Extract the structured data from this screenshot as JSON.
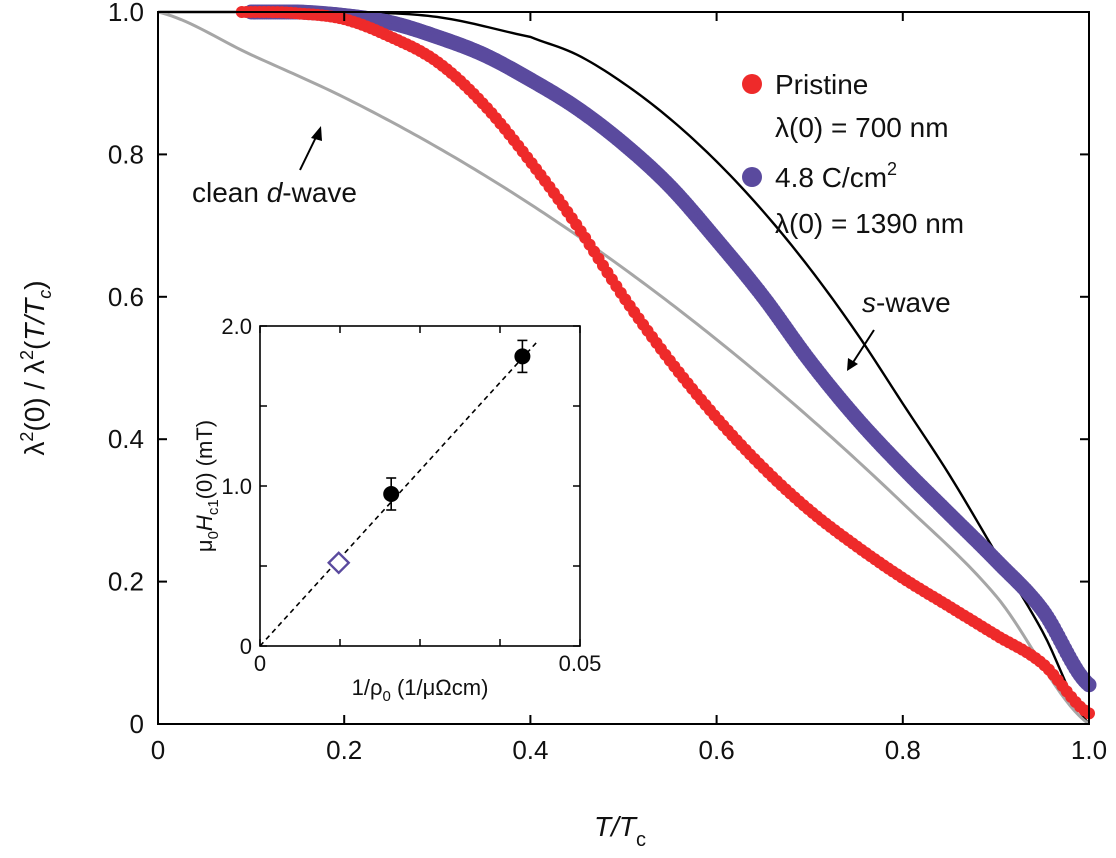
{
  "chart_data": [
    {
      "type": "scatter",
      "xlabel": "T/Tc",
      "xlabel_parts": {
        "main_italic": "T/T",
        "sub": "c"
      },
      "ylabel": "λ²(0) / λ²(T/Tc)",
      "ylabel_parts": {
        "pre": "λ",
        "sup1": "2",
        "mid": "(0) / λ",
        "sup2": "2",
        "open": "(",
        "italic_main": "T/T",
        "italic_sub": "c",
        "close": ")"
      },
      "xlim": [
        0,
        1.0
      ],
      "ylim": [
        0,
        1.0
      ],
      "xticks": [
        0,
        0.2,
        0.4,
        0.6,
        0.8,
        1.0
      ],
      "xtick_labels": [
        "0",
        "0.2",
        "0.4",
        "0.6",
        "0.8",
        "1.0"
      ],
      "yticks": [
        0,
        0.2,
        0.4,
        0.6,
        0.8,
        1.0
      ],
      "ytick_labels": [
        "0",
        "0.2",
        "0.4",
        "0.6",
        "0.8",
        "1.0"
      ],
      "legend": [
        {
          "label": "Pristine",
          "sublabel": "λ(0) = 700 nm",
          "color": "#ee2a2a"
        },
        {
          "label": "4.8 C/cm²",
          "label_main": "4.8 C/cm",
          "label_sup": "2",
          "sublabel": "λ(0) = 1390 nm",
          "color": "#5a4a9e"
        }
      ],
      "series": [
        {
          "name": "Pristine",
          "color": "#ee2a2a",
          "points": [
            [
              0.09,
              1.0
            ],
            [
              0.12,
              1.0
            ],
            [
              0.15,
              0.998
            ],
            [
              0.2,
              0.99
            ],
            [
              0.25,
              0.965
            ],
            [
              0.3,
              0.93
            ],
            [
              0.35,
              0.87
            ],
            [
              0.4,
              0.79
            ],
            [
              0.45,
              0.7
            ],
            [
              0.5,
              0.6
            ],
            [
              0.55,
              0.51
            ],
            [
              0.6,
              0.43
            ],
            [
              0.65,
              0.36
            ],
            [
              0.7,
              0.3
            ],
            [
              0.75,
              0.25
            ],
            [
              0.8,
              0.205
            ],
            [
              0.85,
              0.165
            ],
            [
              0.9,
              0.125
            ],
            [
              0.95,
              0.085
            ],
            [
              1.0,
              0.015
            ]
          ]
        },
        {
          "name": "4.8 C/cm²",
          "color": "#5a4a9e",
          "points": [
            [
              0.1,
              1.0
            ],
            [
              0.15,
              1.0
            ],
            [
              0.2,
              0.995
            ],
            [
              0.25,
              0.985
            ],
            [
              0.3,
              0.965
            ],
            [
              0.35,
              0.94
            ],
            [
              0.4,
              0.905
            ],
            [
              0.45,
              0.865
            ],
            [
              0.5,
              0.815
            ],
            [
              0.55,
              0.755
            ],
            [
              0.6,
              0.68
            ],
            [
              0.65,
              0.6
            ],
            [
              0.7,
              0.51
            ],
            [
              0.75,
              0.43
            ],
            [
              0.8,
              0.36
            ],
            [
              0.85,
              0.295
            ],
            [
              0.9,
              0.23
            ],
            [
              0.95,
              0.16
            ],
            [
              1.0,
              0.055
            ]
          ]
        }
      ],
      "lines": [
        {
          "name": "s-wave",
          "color": "#000000",
          "points": [
            [
              0,
              1.0
            ],
            [
              0.2,
              1.0
            ],
            [
              0.3,
              0.993
            ],
            [
              0.4,
              0.965
            ],
            [
              0.45,
              0.94
            ],
            [
              0.5,
              0.9
            ],
            [
              0.55,
              0.85
            ],
            [
              0.6,
              0.79
            ],
            [
              0.65,
              0.72
            ],
            [
              0.7,
              0.64
            ],
            [
              0.75,
              0.55
            ],
            [
              0.8,
              0.45
            ],
            [
              0.85,
              0.35
            ],
            [
              0.9,
              0.24
            ],
            [
              0.95,
              0.13
            ],
            [
              1.0,
              0.0
            ]
          ]
        },
        {
          "name": "clean d-wave",
          "color": "#a6a6a6",
          "points": [
            [
              0,
              1.0
            ],
            [
              0.1,
              0.94
            ],
            [
              0.2,
              0.88
            ],
            [
              0.3,
              0.81
            ],
            [
              0.4,
              0.73
            ],
            [
              0.5,
              0.64
            ],
            [
              0.6,
              0.54
            ],
            [
              0.7,
              0.43
            ],
            [
              0.8,
              0.31
            ],
            [
              0.9,
              0.18
            ],
            [
              1.0,
              0.0
            ]
          ]
        }
      ],
      "annotations": [
        {
          "name": "clean-d-wave",
          "text_before": "clean ",
          "text_italic": "d",
          "text_after": "-wave",
          "text": "clean d-wave"
        },
        {
          "name": "s-wave",
          "text_italic": "s",
          "text_after": "-wave",
          "text": "s-wave"
        }
      ]
    },
    {
      "type": "scatter",
      "role": "inset",
      "xlabel": "1/ρ0 (1/μΩcm)",
      "xlabel_parts": {
        "main": "1/ρ",
        "sub": "0",
        "rest": " (1/μΩcm)"
      },
      "ylabel": "μ0Hc1(0) (mT)",
      "ylabel_parts": {
        "mu": "μ",
        "mu_sub": "0",
        "H": "H",
        "H_sub": "c1",
        "rest": "(0) (mT)"
      },
      "xlim": [
        0,
        0.05
      ],
      "ylim": [
        0,
        2.0
      ],
      "xticks": [
        0,
        0.0125,
        0.025,
        0.0375,
        0.05
      ],
      "xtick_labels": [
        "0",
        "",
        "",
        "",
        "0.05"
      ],
      "yticks": [
        0,
        0.5,
        1.0,
        1.5,
        2.0
      ],
      "ytick_labels": [
        "0",
        "",
        "1.0",
        "",
        "2.0"
      ],
      "points": [
        {
          "x": 0.0205,
          "y": 0.95,
          "err": 0.1,
          "marker": "circle",
          "color": "#000000"
        },
        {
          "x": 0.041,
          "y": 1.81,
          "err": 0.1,
          "marker": "circle",
          "color": "#000000"
        },
        {
          "x": 0.0123,
          "y": 0.52,
          "marker": "diamond-open",
          "color": "#5a4a9e"
        }
      ],
      "fit_line": {
        "x": [
          0,
          0.0435
        ],
        "y": [
          0,
          1.91
        ],
        "style": "dashed",
        "color": "#000000"
      }
    }
  ]
}
